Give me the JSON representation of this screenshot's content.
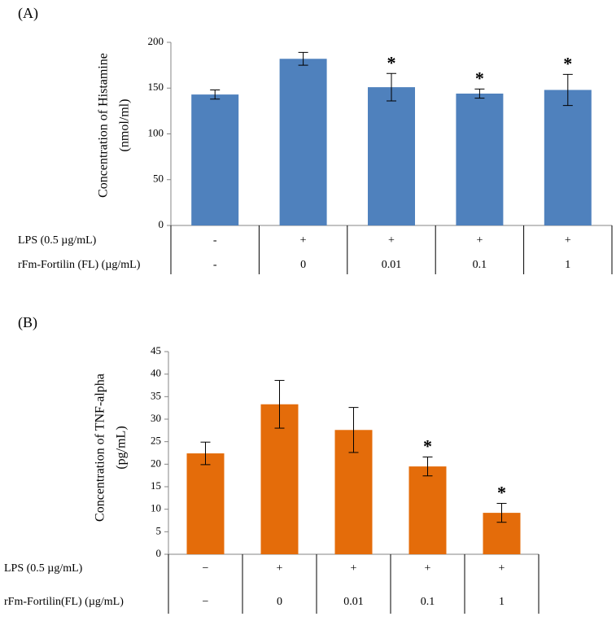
{
  "chart_data": [
    {
      "type": "bar",
      "panel_label": "(A)",
      "ylabel_lines": [
        "Concentration of Histamine",
        "(nmol/ml)"
      ],
      "ylim": [
        0,
        200
      ],
      "yticks": [
        0,
        50,
        100,
        150,
        200
      ],
      "values": [
        143,
        182,
        151,
        144,
        148
      ],
      "errors": [
        5,
        7,
        15,
        5,
        17
      ],
      "significance": [
        "",
        "",
        "*",
        "*",
        "*"
      ],
      "bar_color": "#4F81BD",
      "rows": [
        {
          "label": "LPS (0.5 µg/mL)",
          "cells": [
            "-",
            "+",
            "+",
            "+",
            "+"
          ]
        },
        {
          "label": "rFm-Fortilin (FL) (µg/mL)",
          "cells": [
            "-",
            "0",
            "0.01",
            "0.1",
            "1"
          ]
        }
      ]
    },
    {
      "type": "bar",
      "panel_label": "(B)",
      "ylabel_lines": [
        "Concentration of TNF-alpha",
        "(pg/mL)"
      ],
      "ylim": [
        0,
        45
      ],
      "yticks": [
        0,
        5,
        10,
        15,
        20,
        25,
        30,
        35,
        40,
        45
      ],
      "values": [
        22.4,
        33.3,
        27.6,
        19.5,
        9.2
      ],
      "errors": [
        2.5,
        5.3,
        5.0,
        2.1,
        2.1
      ],
      "significance": [
        "",
        "",
        "",
        "*",
        "*"
      ],
      "bar_color": "#E46C0A",
      "rows": [
        {
          "label": "LPS (0.5 µg/mL)",
          "cells": [
            "−",
            "+",
            "+",
            "+",
            "+"
          ]
        },
        {
          "label": "rFm-Fortilin(FL) (µg/mL)",
          "cells": [
            "−",
            "0",
            "0.01",
            "0.1",
            "1"
          ]
        }
      ]
    }
  ]
}
